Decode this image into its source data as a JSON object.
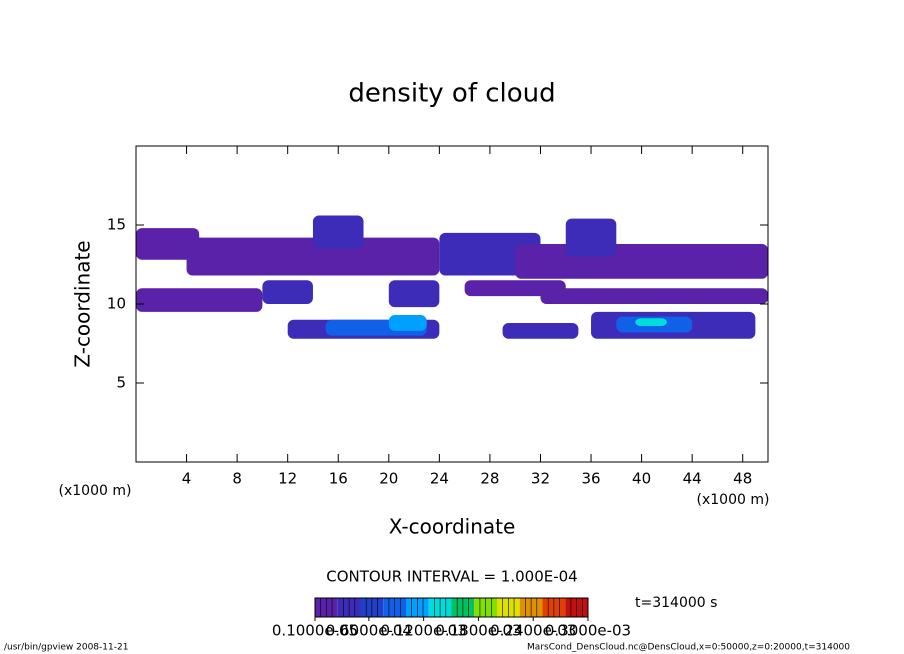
{
  "chart_data": {
    "type": "contour",
    "title": "density of cloud",
    "x_label": "X-coordinate",
    "y_label": "Z-coordinate",
    "x_unit_left": "(x1000 m)",
    "x_unit_right": "(x1000 m)",
    "xlim": [
      0,
      50
    ],
    "xticks": [
      4,
      8,
      12,
      16,
      20,
      24,
      28,
      32,
      36,
      40,
      44,
      48
    ],
    "ylim": [
      0,
      20
    ],
    "yticks": [
      5,
      10,
      15
    ],
    "contour_note": "CONTOUR INTERVAL = 1.000E-04",
    "time_label": "t=314000 s",
    "colorbar": {
      "lim": [
        1e-06,
        0.0003
      ],
      "ticks": [
        {
          "value": 1e-06,
          "label": "0.1000e-05"
        },
        {
          "value": 6e-05,
          "label": "0.6000e-04"
        },
        {
          "value": 0.00012,
          "label": "0.1200e-03"
        },
        {
          "value": 0.00018,
          "label": "0.1800e-03"
        },
        {
          "value": 0.00024,
          "label": "0.2400e-03"
        },
        {
          "value": 0.0003,
          "label": "0.3000e-03"
        }
      ],
      "colors": [
        "#5a22a8",
        "#3c2cb8",
        "#2040c8",
        "#1060e8",
        "#00a0ff",
        "#00dcdc",
        "#00c060",
        "#80e000",
        "#e0e000",
        "#e09000",
        "#e04000",
        "#c01010"
      ]
    },
    "regions": [
      {
        "x": [
          0,
          5
        ],
        "z": [
          12.8,
          14.8
        ],
        "value": 2e-05
      },
      {
        "x": [
          4,
          24
        ],
        "z": [
          11.8,
          14.2
        ],
        "value": 2e-05
      },
      {
        "x": [
          14,
          18
        ],
        "z": [
          13.5,
          15.6
        ],
        "value": 3e-05
      },
      {
        "x": [
          24,
          32
        ],
        "z": [
          11.8,
          14.5
        ],
        "value": 4e-05
      },
      {
        "x": [
          30,
          50
        ],
        "z": [
          11.6,
          13.8
        ],
        "value": 2e-05
      },
      {
        "x": [
          34,
          38
        ],
        "z": [
          13,
          15.4
        ],
        "value": 3e-05
      },
      {
        "x": [
          0,
          10
        ],
        "z": [
          9.5,
          11
        ],
        "value": 2e-05
      },
      {
        "x": [
          10,
          14
        ],
        "z": [
          10,
          11.5
        ],
        "value": 3e-05
      },
      {
        "x": [
          20,
          24
        ],
        "z": [
          9.8,
          11.5
        ],
        "value": 4e-05
      },
      {
        "x": [
          26,
          34
        ],
        "z": [
          10.5,
          11.5
        ],
        "value": 2e-05
      },
      {
        "x": [
          32,
          50
        ],
        "z": [
          10,
          11
        ],
        "value": 2e-05
      },
      {
        "x": [
          12,
          24
        ],
        "z": [
          7.8,
          9
        ],
        "value": 3e-05
      },
      {
        "x": [
          15,
          23
        ],
        "z": [
          8,
          9
        ],
        "value": 8e-05
      },
      {
        "x": [
          20,
          23
        ],
        "z": [
          8.3,
          9.3
        ],
        "value": 0.00012
      },
      {
        "x": [
          29,
          35
        ],
        "z": [
          7.8,
          8.8
        ],
        "value": 4e-05
      },
      {
        "x": [
          36,
          49
        ],
        "z": [
          7.8,
          9.5
        ],
        "value": 3e-05
      },
      {
        "x": [
          38,
          44
        ],
        "z": [
          8.2,
          9.2
        ],
        "value": 8e-05
      },
      {
        "x": [
          39.5,
          42
        ],
        "z": [
          8.6,
          9.1
        ],
        "value": 0.00013
      }
    ]
  },
  "footer": {
    "left": "/usr/bin/gpview  2008-11-21",
    "right": "MarsCond_DensCloud.nc@DensCloud,x=0:50000,z=0:20000,t=314000"
  }
}
